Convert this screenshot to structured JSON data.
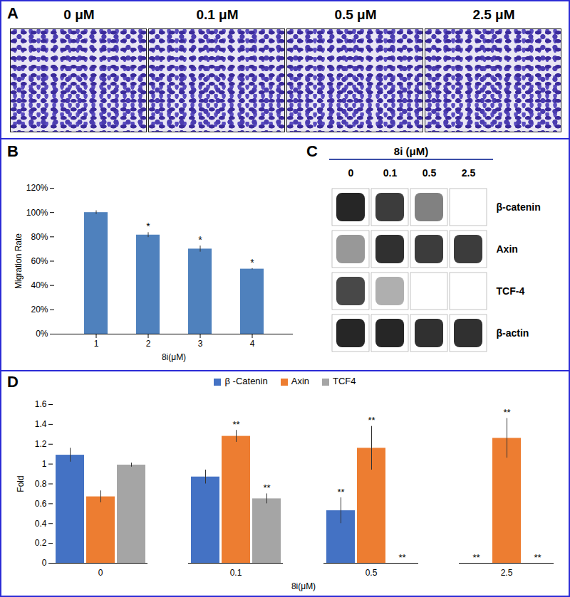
{
  "panel_a": {
    "label": "A",
    "images": [
      "0 μM",
      "0.1 μM",
      "0.5 μM",
      "2.5 μM"
    ]
  },
  "chart_data": [
    {
      "type": "bar",
      "title": "B",
      "categories": [
        "1",
        "2",
        "3",
        "4"
      ],
      "values": [
        100,
        81.5,
        70,
        53.5
      ],
      "errors": [
        1.5,
        2,
        2.5,
        0.5
      ],
      "significance": [
        null,
        "*",
        "*",
        "*"
      ],
      "color": "#4f81bd",
      "x_label": "8i(μM)",
      "y_label": "Migration Rate",
      "ylim": [
        0,
        120
      ],
      "yticks": [
        {
          "value": 0,
          "label": "0%"
        },
        {
          "value": 20,
          "label": "20%"
        },
        {
          "value": 40,
          "label": "40%"
        },
        {
          "value": 60,
          "label": "60%"
        },
        {
          "value": 80,
          "label": "80%"
        },
        {
          "value": 100,
          "label": "100%"
        },
        {
          "value": 120,
          "label": "120%"
        }
      ],
      "grid": false
    },
    {
      "type": "bar",
      "title": "D",
      "categories": [
        "0",
        "0.1",
        "0.5",
        "2.5"
      ],
      "series": [
        {
          "name": "β -Catenin",
          "color": "#4472c4",
          "values": [
            1.09,
            0.87,
            0.53,
            0
          ],
          "errors": [
            0.07,
            0.07,
            0.13,
            0
          ],
          "significance": [
            null,
            null,
            "**",
            "**"
          ]
        },
        {
          "name": "Axin",
          "color": "#ed7d31",
          "values": [
            0.67,
            1.28,
            1.16,
            1.26
          ],
          "errors": [
            0.06,
            0.06,
            0.22,
            0.2
          ],
          "significance": [
            null,
            "**",
            "**",
            "**"
          ]
        },
        {
          "name": "TCF4",
          "color": "#a5a5a5",
          "values": [
            0.99,
            0.65,
            0,
            0
          ],
          "errors": [
            0.02,
            0.05,
            0,
            0
          ],
          "significance": [
            null,
            "**",
            "**",
            "**"
          ]
        }
      ],
      "x_label": "8i(μM)",
      "y_label": "Fold",
      "ylim": [
        0,
        1.6
      ],
      "yticks": [
        0,
        0.2,
        0.4,
        0.6,
        0.8,
        1,
        1.2,
        1.4,
        1.6
      ],
      "legend": "top",
      "grid": false
    }
  ],
  "panel_c": {
    "label": "C",
    "title": "8i (μM)",
    "lanes": [
      "0",
      "0.1",
      "0.5",
      "2.5"
    ],
    "rows": [
      {
        "name": "β-catenin",
        "intensity": [
          0.95,
          0.85,
          0.55,
          0
        ]
      },
      {
        "name": "Axin",
        "intensity": [
          0.45,
          0.9,
          0.85,
          0.85
        ]
      },
      {
        "name": "TCF-4",
        "intensity": [
          0.8,
          0.35,
          0,
          0
        ]
      },
      {
        "name": "β-actin",
        "intensity": [
          0.95,
          0.95,
          0.9,
          0.9
        ]
      }
    ]
  }
}
